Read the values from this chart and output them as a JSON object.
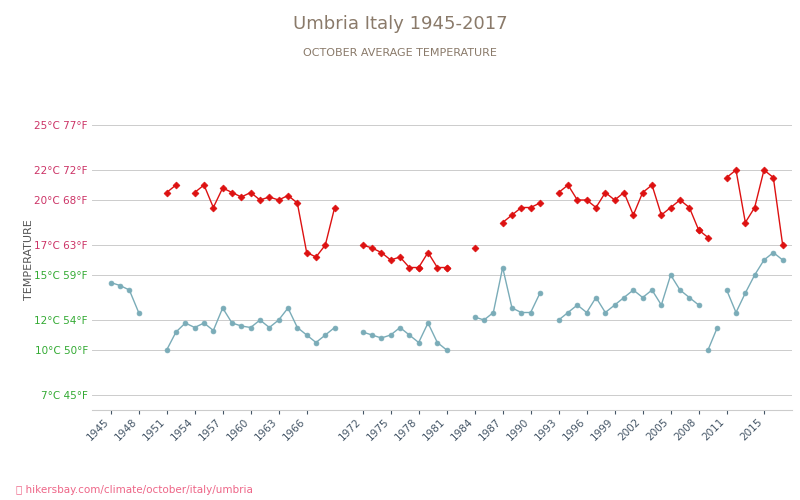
{
  "title": "Umbria Italy 1945-2017",
  "subtitle": "OCTOBER AVERAGE TEMPERATURE",
  "ylabel": "TEMPERATURE",
  "url_label": "hikersbay.com/climate/october/italy/umbria",
  "title_color": "#8a7a6a",
  "subtitle_color": "#8a7a6a",
  "ylabel_color": "#555555",
  "background_color": "#ffffff",
  "grid_color": "#cccccc",
  "yticks_celsius": [
    7,
    10,
    12,
    15,
    17,
    20,
    22,
    25
  ],
  "yticks_fahrenheit": [
    45,
    50,
    54,
    59,
    63,
    68,
    72,
    77
  ],
  "ytick_colors": [
    "#33aa33",
    "#33aa33",
    "#33aa33",
    "#33aa33",
    "#cc3366",
    "#cc3366",
    "#cc3366",
    "#cc3366"
  ],
  "xticks": [
    1945,
    1948,
    1951,
    1954,
    1957,
    1960,
    1963,
    1966,
    1972,
    1975,
    1978,
    1981,
    1984,
    1987,
    1990,
    1993,
    1996,
    1999,
    2002,
    2005,
    2008,
    2011,
    2015
  ],
  "night_color": "#7aacb8",
  "day_color": "#dd1111",
  "night_segments": [
    {
      "years": [
        1945,
        1946,
        1947,
        1948
      ],
      "temps": [
        14.5,
        14.3,
        14.0,
        12.5
      ]
    },
    {
      "years": [
        1951,
        1952,
        1953,
        1954,
        1955,
        1956,
        1957,
        1958,
        1959,
        1960,
        1961,
        1962,
        1963,
        1964,
        1965,
        1966,
        1967,
        1968,
        1969
      ],
      "temps": [
        10.0,
        11.2,
        11.8,
        11.5,
        11.8,
        11.3,
        12.8,
        11.8,
        11.6,
        11.5,
        12.0,
        11.5,
        12.0,
        12.8,
        11.5,
        11.0,
        10.5,
        11.0,
        11.5
      ]
    },
    {
      "years": [
        1972,
        1973,
        1974,
        1975,
        1976,
        1977,
        1978,
        1979,
        1980,
        1981
      ],
      "temps": [
        11.2,
        11.0,
        10.8,
        11.0,
        11.5,
        11.0,
        10.5,
        11.8,
        10.5,
        10.0
      ]
    },
    {
      "years": [
        1984,
        1985,
        1986,
        1987,
        1988,
        1989,
        1990,
        1991
      ],
      "temps": [
        12.2,
        12.0,
        12.5,
        15.5,
        12.8,
        12.5,
        12.5,
        13.8
      ]
    },
    {
      "years": [
        1993,
        1994,
        1995,
        1996,
        1997,
        1998,
        1999,
        2000,
        2001,
        2002,
        2003,
        2004,
        2005,
        2006,
        2007,
        2008
      ],
      "temps": [
        12.0,
        12.5,
        13.0,
        12.5,
        13.5,
        12.5,
        13.0,
        13.5,
        14.0,
        13.5,
        14.0,
        13.0,
        15.0,
        14.0,
        13.5,
        13.0
      ]
    },
    {
      "years": [
        2009,
        2010
      ],
      "temps": [
        10.0,
        11.5
      ]
    },
    {
      "years": [
        2011,
        2012,
        2013,
        2014,
        2015,
        2016,
        2017
      ],
      "temps": [
        14.0,
        12.5,
        13.8,
        15.0,
        16.0,
        16.5,
        16.0
      ]
    }
  ],
  "day_segments": [
    {
      "years": [
        1951,
        1952
      ],
      "temps": [
        20.5,
        21.0
      ]
    },
    {
      "years": [
        1954,
        1955,
        1956,
        1957,
        1958,
        1959,
        1960,
        1961,
        1962,
        1963,
        1964,
        1965,
        1966,
        1967,
        1968,
        1969
      ],
      "temps": [
        20.5,
        21.0,
        19.5,
        20.8,
        20.5,
        20.2,
        20.5,
        20.0,
        20.2,
        20.0,
        20.3,
        19.8,
        16.5,
        16.2,
        17.0,
        19.5
      ]
    },
    {
      "years": [
        1972,
        1973,
        1974,
        1975,
        1976,
        1977,
        1978,
        1979,
        1980,
        1981
      ],
      "temps": [
        17.0,
        16.8,
        16.5,
        16.0,
        16.2,
        15.5,
        15.5,
        16.5,
        15.5,
        15.5
      ]
    },
    {
      "years": [
        1978
      ],
      "temps": [
        15.5
      ]
    },
    {
      "years": [
        1981
      ],
      "temps": [
        15.5
      ]
    },
    {
      "years": [
        1984
      ],
      "temps": [
        16.8
      ]
    },
    {
      "years": [
        1987,
        1988,
        1989,
        1990,
        1991
      ],
      "temps": [
        18.5,
        19.0,
        19.5,
        19.5,
        19.8
      ]
    },
    {
      "years": [
        1993,
        1994,
        1995,
        1996,
        1997,
        1998,
        1999,
        2000,
        2001,
        2002,
        2003,
        2004,
        2005,
        2006,
        2007,
        2008
      ],
      "temps": [
        20.5,
        21.0,
        20.0,
        20.0,
        19.5,
        20.5,
        20.0,
        20.5,
        19.0,
        20.5,
        21.0,
        19.0,
        19.5,
        20.0,
        19.5,
        18.0
      ]
    },
    {
      "years": [
        2008,
        2009
      ],
      "temps": [
        18.0,
        17.5
      ]
    },
    {
      "years": [
        2011,
        2012,
        2013,
        2014,
        2015,
        2016,
        2017
      ],
      "temps": [
        21.5,
        22.0,
        18.5,
        19.5,
        22.0,
        21.5,
        17.0
      ]
    }
  ],
  "night_isolated": [],
  "day_isolated": []
}
